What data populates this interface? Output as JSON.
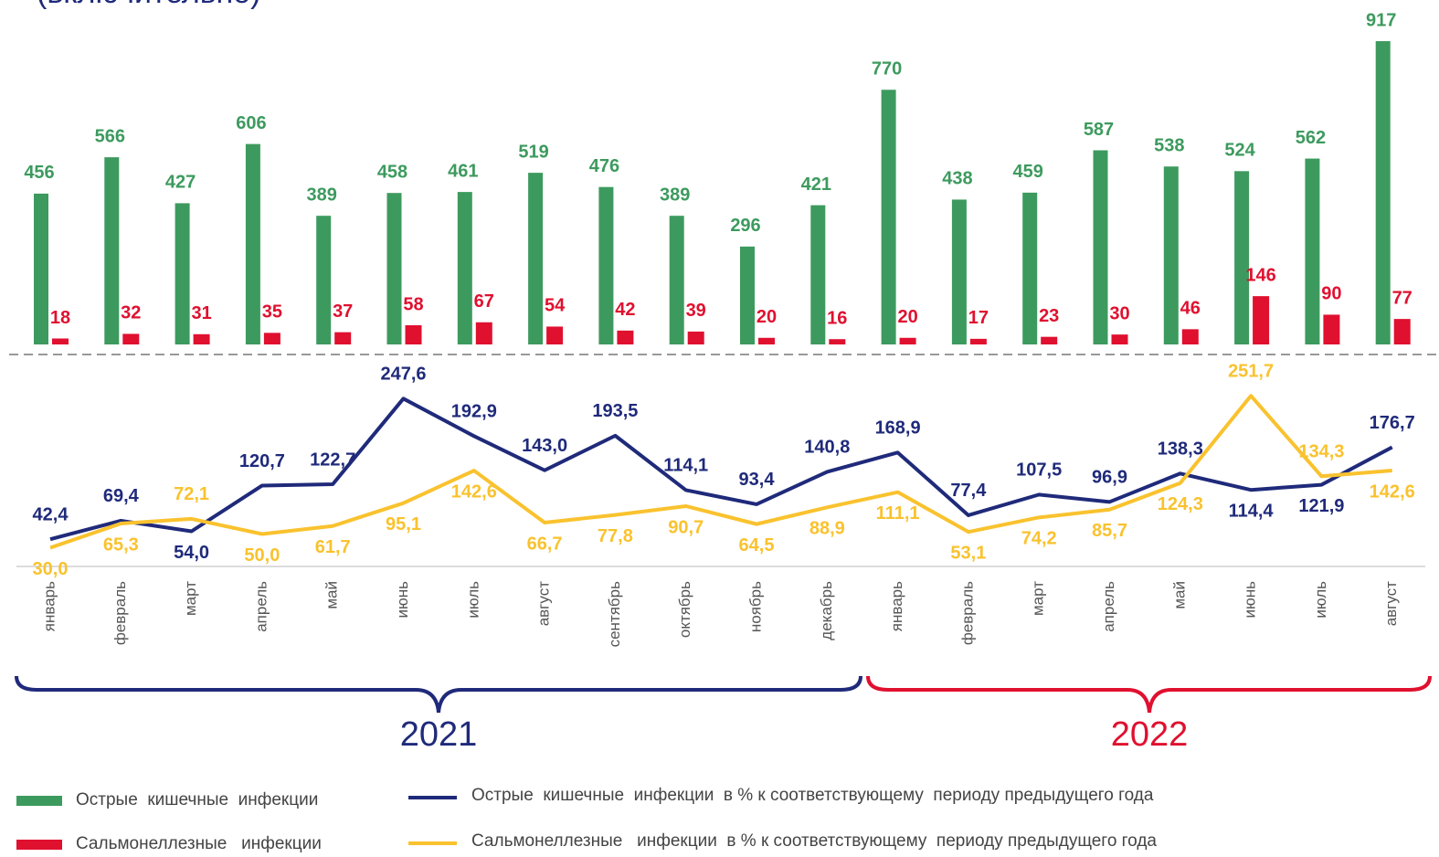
{
  "chart_data": {
    "type": "combo",
    "title": "(включительно)",
    "categories": [
      "январь",
      "февраль",
      "март",
      "апрель",
      "май",
      "июнь",
      "июль",
      "август",
      "сентябрь",
      "октябрь",
      "ноябрь",
      "декабрь",
      "январь",
      "февраль",
      "март",
      "апрель",
      "май",
      "июнь",
      "июль",
      "август"
    ],
    "annotations": [
      "2021",
      "2022"
    ],
    "ylim": [
      0,
      1000
    ],
    "y2lim": [
      0,
      300
    ],
    "series": [
      {
        "name": "Острые  кишечные  инфекции",
        "color": "#3d9a5e",
        "values": [
          456,
          566,
          427,
          606,
          389,
          458,
          461,
          519,
          476,
          389,
          296,
          421,
          770,
          438,
          459,
          587,
          538,
          524,
          562,
          917
        ]
      },
      {
        "name": "Сальмонеллезные   инфекции",
        "color": "#e0102f",
        "values": [
          18,
          32,
          31,
          35,
          37,
          58,
          67,
          54,
          42,
          39,
          20,
          16,
          20,
          17,
          23,
          30,
          46,
          146,
          90,
          77
        ]
      },
      {
        "name": "Острые  кишечные  инфекции  в % к соответствующему  периоду предыдущего года",
        "color": "#1f2a7a",
        "axis": "y2",
        "values": [
          42.4,
          69.4,
          54.0,
          120.7,
          122.7,
          247.6,
          192.9,
          143.0,
          193.5,
          114.1,
          93.4,
          140.8,
          168.9,
          77.4,
          107.5,
          96.9,
          138.3,
          114.4,
          121.9,
          176.7
        ],
        "value_labels": [
          "42,4",
          "69,4",
          "54,0",
          "120,7",
          "122,7",
          "247,6",
          "192,9",
          "143,0",
          "193,5",
          "114,1",
          "93,4",
          "140,8",
          "168,9",
          "77,4",
          "107,5",
          "96,9",
          "138,3",
          "114,4",
          "121,9",
          "176,7"
        ]
      },
      {
        "name": "Сальмонеллезные   инфекции  в % к соответствующему  периоду предыдущего года",
        "color": "#f9c22e",
        "axis": "y2",
        "values": [
          30.0,
          65.3,
          72.1,
          50.0,
          61.7,
          95.1,
          142.6,
          66.7,
          77.8,
          90.7,
          64.5,
          88.9,
          111.1,
          53.1,
          74.2,
          85.7,
          124.3,
          251.7,
          134.3,
          142.6
        ],
        "value_labels": [
          "30,0",
          "65,3",
          "72,1",
          "50,0",
          "61,7",
          "95,1",
          "142,6",
          "66,7",
          "77,8",
          "90,7",
          "64,5",
          "88,9",
          "111,1",
          "53,1",
          "74,2",
          "85,7",
          "124,3",
          "251,7",
          "134,3",
          "142,6"
        ]
      }
    ]
  }
}
